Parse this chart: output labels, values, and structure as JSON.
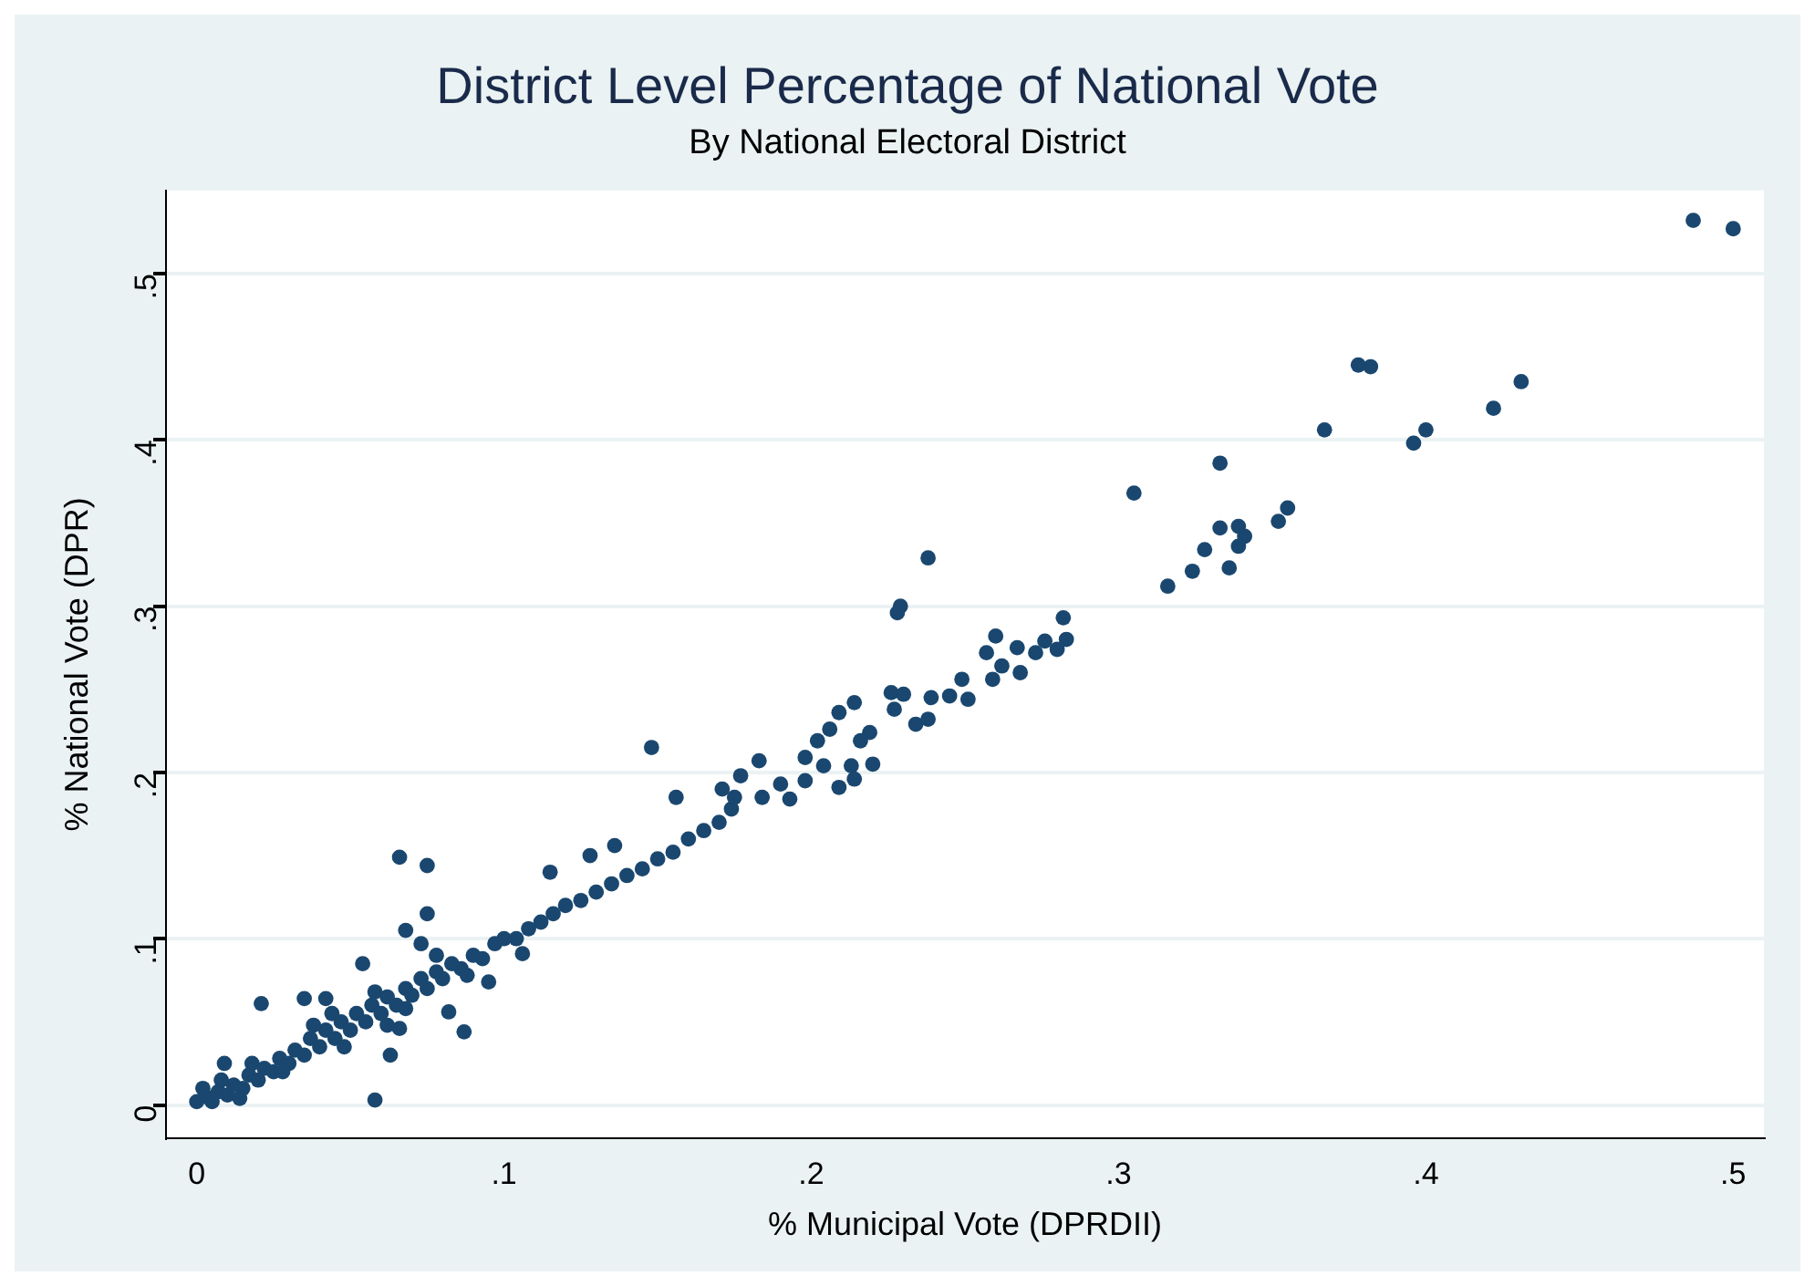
{
  "chart_data": {
    "type": "scatter",
    "title": "District Level Percentage of National Vote",
    "subtitle": "By National Electoral District",
    "xlabel": "% Municipal Vote (DPRDII)",
    "ylabel": "% National Vote (DPR)",
    "x": [
      0.487,
      0.5,
      0.378,
      0.382,
      0.431,
      0.422,
      0.367,
      0.4,
      0.396,
      0.333,
      0.305,
      0.355,
      0.352,
      0.333,
      0.339,
      0.341,
      0.339,
      0.328,
      0.324,
      0.336,
      0.316,
      0.238,
      0.229,
      0.228,
      0.282,
      0.283,
      0.28,
      0.276,
      0.273,
      0.267,
      0.268,
      0.26,
      0.257,
      0.259,
      0.262,
      0.249,
      0.251,
      0.245,
      0.239,
      0.238,
      0.234,
      0.226,
      0.23,
      0.227,
      0.214,
      0.209,
      0.206,
      0.202,
      0.219,
      0.216,
      0.22,
      0.213,
      0.214,
      0.209,
      0.198,
      0.204,
      0.198,
      0.183,
      0.177,
      0.19,
      0.184,
      0.193,
      0.148,
      0.156,
      0.171,
      0.174,
      0.066,
      0.075,
      0.075,
      0.068,
      0.073,
      0.021,
      0.035,
      0.042,
      0.054,
      0.058,
      0.063,
      0.066,
      0.087,
      0.082,
      0.095,
      0.106,
      0.115,
      0.128,
      0.136,
      0.009,
      0,
      0.003,
      0.005,
      0.007,
      0.01,
      0.012,
      0.015,
      0.017,
      0.02,
      0.022,
      0.025,
      0.027,
      0.03,
      0.032,
      0.035,
      0.037,
      0.04,
      0.042,
      0.045,
      0.047,
      0.05,
      0.052,
      0.055,
      0.057,
      0.06,
      0.062,
      0.065,
      0.068,
      0.07,
      0.073,
      0.075,
      0.078,
      0.08,
      0.083,
      0.086,
      0.09,
      0.093,
      0.097,
      0.1,
      0.104,
      0.108,
      0.112,
      0.116,
      0.12,
      0.125,
      0.13,
      0.135,
      0.14,
      0.145,
      0.15,
      0.155,
      0.16,
      0.165,
      0.17,
      0.175,
      0.018,
      0.028,
      0.038,
      0.048,
      0.058,
      0.068,
      0.078,
      0.088,
      0.008,
      0.014,
      0.002,
      0.044,
      0.062
    ],
    "series": [
      {
        "color": "#1a476f",
        "values": [
          0.532,
          0.527,
          0.445,
          0.444,
          0.435,
          0.419,
          0.406,
          0.406,
          0.398,
          0.386,
          0.368,
          0.359,
          0.351,
          0.347,
          0.348,
          0.342,
          0.336,
          0.334,
          0.321,
          0.323,
          0.312,
          0.329,
          0.3,
          0.296,
          0.293,
          0.28,
          0.274,
          0.279,
          0.272,
          0.275,
          0.26,
          0.282,
          0.272,
          0.256,
          0.264,
          0.256,
          0.244,
          0.246,
          0.245,
          0.232,
          0.229,
          0.248,
          0.247,
          0.238,
          0.242,
          0.236,
          0.226,
          0.219,
          0.224,
          0.219,
          0.205,
          0.204,
          0.196,
          0.191,
          0.209,
          0.204,
          0.195,
          0.207,
          0.198,
          0.193,
          0.185,
          0.184,
          0.215,
          0.185,
          0.19,
          0.178,
          0.149,
          0.144,
          0.115,
          0.105,
          0.097,
          0.061,
          0.064,
          0.064,
          0.085,
          0.003,
          0.03,
          0.046,
          0.044,
          0.056,
          0.074,
          0.091,
          0.14,
          0.15,
          0.156,
          0.025,
          0.002,
          0.005,
          0.002,
          0.008,
          0.006,
          0.012,
          0.01,
          0.018,
          0.015,
          0.022,
          0.02,
          0.028,
          0.025,
          0.033,
          0.03,
          0.04,
          0.035,
          0.045,
          0.04,
          0.05,
          0.045,
          0.055,
          0.05,
          0.06,
          0.055,
          0.065,
          0.06,
          0.07,
          0.066,
          0.076,
          0.07,
          0.08,
          0.076,
          0.085,
          0.082,
          0.09,
          0.088,
          0.097,
          0.1,
          0.1,
          0.106,
          0.11,
          0.115,
          0.12,
          0.123,
          0.128,
          0.133,
          0.138,
          0.142,
          0.148,
          0.152,
          0.16,
          0.165,
          0.17,
          0.185,
          0.025,
          0.02,
          0.048,
          0.035,
          0.068,
          0.058,
          0.09,
          0.078,
          0.015,
          0.004,
          0.01,
          0.055,
          0.048
        ]
      }
    ],
    "xlim": [
      -0.01,
      0.51
    ],
    "ylim": [
      -0.02,
      0.55
    ],
    "xticks": [
      0,
      {
        "value": 0.1,
        "label": ".1"
      },
      {
        "value": 0.2,
        "label": ".2"
      },
      {
        "value": 0.3,
        "label": ".3"
      },
      {
        "value": 0.4,
        "label": ".4"
      },
      {
        "value": 0.5,
        "label": ".5"
      }
    ],
    "yticks": [
      0,
      {
        "value": 0.1,
        "label": ".1"
      },
      {
        "value": 0.2,
        "label": ".2"
      },
      {
        "value": 0.3,
        "label": ".3"
      },
      {
        "value": 0.4,
        "label": ".4"
      },
      {
        "value": 0.5,
        "label": ".5"
      }
    ],
    "grid": "y",
    "marker": "circle"
  }
}
